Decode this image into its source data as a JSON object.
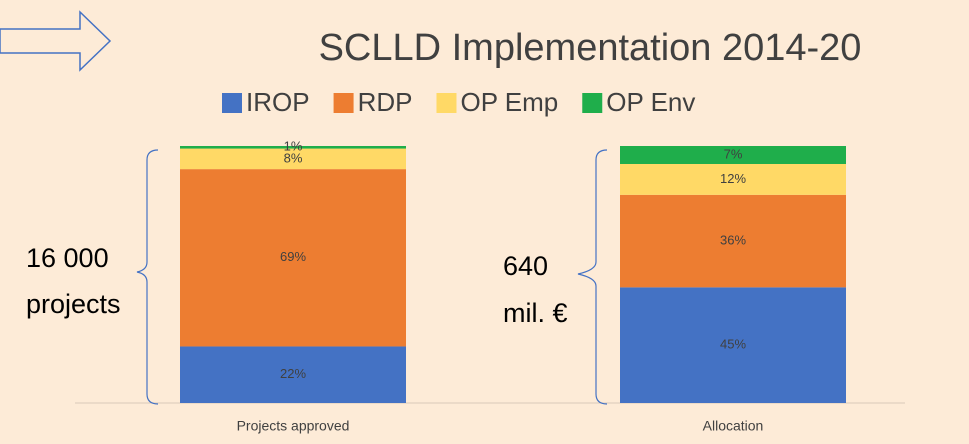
{
  "chart_data": {
    "type": "bar",
    "stacked": true,
    "title": "SCLLD Implementation 2014-20",
    "categories": [
      "Projects approved",
      "Allocation"
    ],
    "series": [
      {
        "name": "IROP",
        "color": "#4472c4",
        "values": [
          22,
          45
        ],
        "value_labels": [
          "22%",
          "45%"
        ]
      },
      {
        "name": "RDP",
        "color": "#ed7d31",
        "values": [
          69,
          36
        ],
        "value_labels": [
          "69%",
          "36%"
        ]
      },
      {
        "name": "OP Emp",
        "color": "#ffd966",
        "values": [
          8,
          12
        ],
        "value_labels": [
          "8%",
          "12%"
        ]
      },
      {
        "name": "OP Env",
        "color": "#1fae4b",
        "values": [
          1,
          7
        ],
        "value_labels": [
          "1%",
          "7%"
        ]
      }
    ],
    "ylim": [
      0,
      100
    ],
    "legend": "top",
    "annotations": [
      [
        "16 000",
        "projects"
      ],
      [
        "640",
        "mil. €"
      ]
    ]
  }
}
